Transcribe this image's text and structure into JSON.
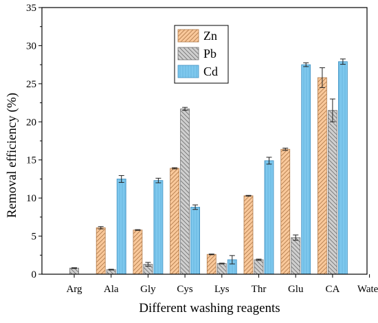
{
  "chart_data": {
    "type": "bar",
    "xlabel": "Different washing reagents",
    "ylabel": "Removal efficiency (%)",
    "ylim": [
      0,
      35
    ],
    "yticks": [
      0,
      5,
      10,
      15,
      20,
      25,
      30,
      35
    ],
    "categories": [
      "Arg",
      "Ala",
      "Gly",
      "Cys",
      "Lys",
      "Thr",
      "Glu",
      "CA",
      "Water"
    ],
    "grid": false,
    "legend_position": "top-center",
    "series": [
      {
        "name": "Zn",
        "color": "#f9c89a",
        "pattern": "diagonal-hatch-forward",
        "values": [
          0,
          6.1,
          5.8,
          13.9,
          2.6,
          10.3,
          16.4,
          25.8,
          0
        ],
        "errors": [
          0,
          0.15,
          0.05,
          0.08,
          0.05,
          0.05,
          0.15,
          1.3,
          0
        ]
      },
      {
        "name": "Pb",
        "color": "#cfcfcf",
        "pattern": "diagonal-hatch-backward",
        "values": [
          0.8,
          0.6,
          1.3,
          21.7,
          1.4,
          1.9,
          4.8,
          21.5,
          0
        ],
        "errors": [
          0.05,
          0.05,
          0.25,
          0.2,
          0.05,
          0.08,
          0.35,
          1.5,
          0
        ]
      },
      {
        "name": "Cd",
        "color": "#7ec8ee",
        "pattern": "vertical-hatch",
        "values": [
          0,
          12.5,
          12.3,
          8.8,
          1.9,
          14.9,
          27.5,
          27.9,
          0
        ],
        "errors": [
          0,
          0.45,
          0.3,
          0.3,
          0.55,
          0.45,
          0.25,
          0.35,
          0
        ]
      }
    ]
  }
}
